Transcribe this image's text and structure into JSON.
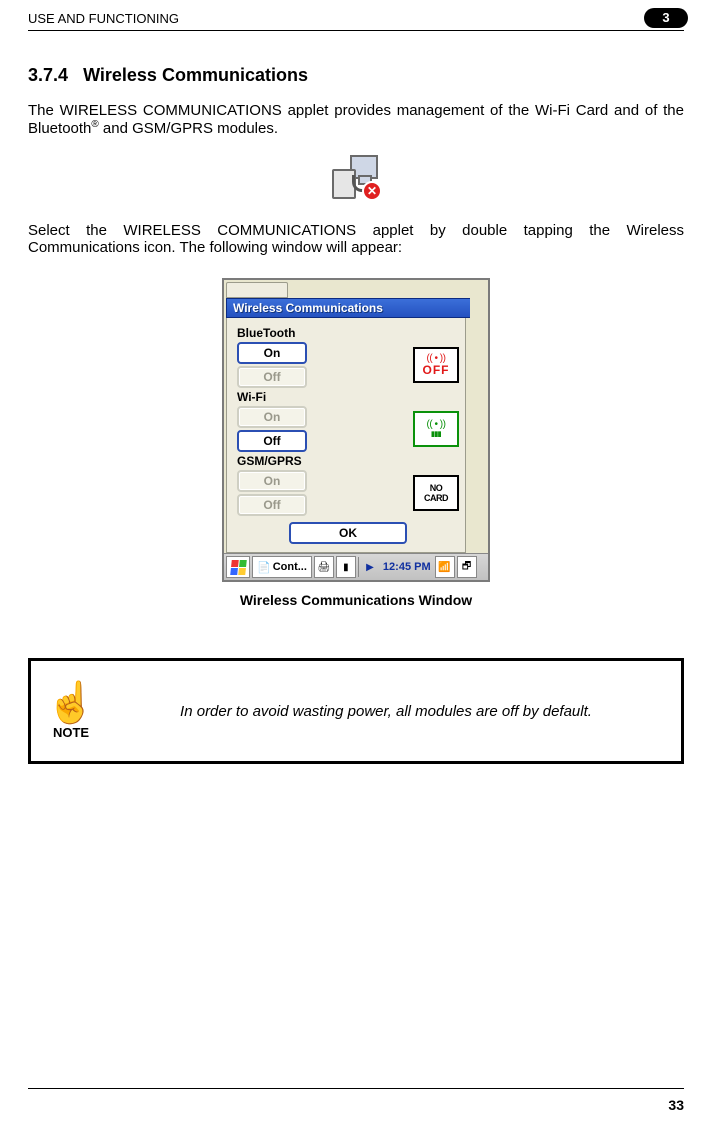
{
  "header": {
    "title": "USE AND FUNCTIONING",
    "chapter": "3"
  },
  "section": {
    "number": "3.7.4",
    "title": "Wireless Communications"
  },
  "para1_a": "The WIRELESS COMMUNICATIONS applet provides management of the Wi-Fi Card and of the Bluetooth",
  "para1_b": " and GSM/GPRS modules.",
  "para2": "Select the WIRELESS COMMUNICATIONS applet by double tapping the Wireless Communications icon. The following window will appear:",
  "caption": "Wireless Communications Window",
  "window": {
    "title": "Wireless Communications",
    "groups": {
      "bluetooth": {
        "label": "BlueTooth",
        "on": "On",
        "off": "Off",
        "on_enabled": true,
        "off_enabled": false,
        "status": "OFF",
        "status_color": "#e11919",
        "antenna_color": "#e11919"
      },
      "wifi": {
        "label": "Wi-Fi",
        "on": "On",
        "off": "Off",
        "on_enabled": false,
        "off_enabled": true,
        "status": "ON",
        "antenna_color": "#0a910a"
      },
      "gsm": {
        "label": "GSM/GPRS",
        "on": "On",
        "off": "Off",
        "on_enabled": false,
        "off_enabled": false,
        "status_l1": "NO",
        "status_l2": "CARD"
      }
    },
    "ok": "OK",
    "taskbar": {
      "task": "Cont...",
      "clock": "12:45 PM"
    }
  },
  "note": {
    "label": "NOTE",
    "text": "In order to avoid wasting power, all modules are off by default."
  },
  "page_number": "33",
  "colors": {
    "titlebar_top": "#3b6fd9",
    "titlebar_bottom": "#2451c0",
    "panel_bg": "#efede0",
    "selected_border": "#2b4fb3",
    "disabled_text": "#9a998c"
  }
}
